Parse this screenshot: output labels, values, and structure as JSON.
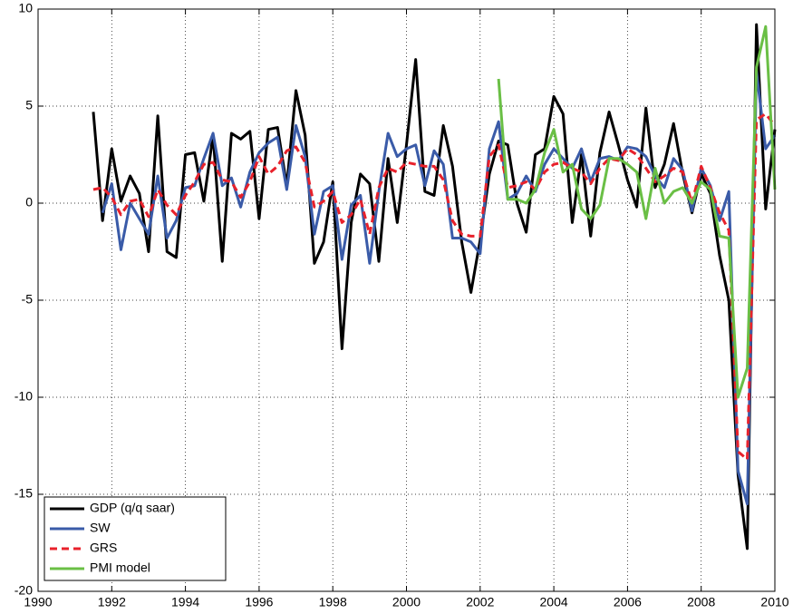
{
  "chart_data": {
    "type": "line",
    "x": [
      1991.5,
      1991.75,
      1992,
      1992.25,
      1992.5,
      1992.75,
      1993,
      1993.25,
      1993.5,
      1993.75,
      1994,
      1994.25,
      1994.5,
      1994.75,
      1995,
      1995.25,
      1995.5,
      1995.75,
      1996,
      1996.25,
      1996.5,
      1996.75,
      1997,
      1997.25,
      1997.5,
      1997.75,
      1998,
      1998.25,
      1998.5,
      1998.75,
      1999,
      1999.25,
      1999.5,
      1999.75,
      2000,
      2000.25,
      2000.5,
      2000.75,
      2001,
      2001.25,
      2001.5,
      2001.75,
      2002,
      2002.25,
      2002.5,
      2002.75,
      2003,
      2003.25,
      2003.5,
      2003.75,
      2004,
      2004.25,
      2004.5,
      2004.75,
      2005,
      2005.25,
      2005.5,
      2005.75,
      2006,
      2006.25,
      2006.5,
      2006.75,
      2007,
      2007.25,
      2007.5,
      2007.75,
      2008,
      2008.25,
      2008.5,
      2008.75,
      2009,
      2009.25,
      2009.5,
      2009.75,
      2010
    ],
    "series": [
      {
        "name": "GDP (q/q saar)",
        "color": "#000000",
        "dashed": false,
        "values": [
          4.7,
          -0.9,
          2.8,
          0.1,
          1.4,
          0.5,
          -2.5,
          4.5,
          -2.5,
          -2.8,
          2.5,
          2.6,
          0.1,
          3.5,
          -3.0,
          3.6,
          3.3,
          3.7,
          -0.8,
          3.8,
          3.9,
          0.9,
          5.8,
          3.5,
          -3.1,
          -2.0,
          1.1,
          -7.5,
          -1.0,
          1.5,
          1.0,
          -3.0,
          2.3,
          -1.0,
          3.0,
          7.4,
          0.6,
          0.4,
          4.0,
          1.9,
          -2.0,
          -4.6,
          -1.9,
          1.5,
          3.2,
          3.0,
          0.0,
          -1.5,
          2.5,
          2.8,
          5.5,
          4.6,
          -1.0,
          2.5,
          -1.7,
          2.6,
          4.7,
          3.0,
          1.2,
          -0.2,
          4.9,
          0.8,
          2.0,
          4.1,
          1.5,
          -0.5,
          1.5,
          0.5,
          -2.7,
          -5.0,
          -14.0,
          -17.8,
          9.2,
          -0.3,
          3.8
        ]
      },
      {
        "name": "SW",
        "color": "#3a5ba8",
        "dashed": false,
        "values": [
          null,
          -0.5,
          1.0,
          -2.4,
          0.0,
          -0.8,
          -1.6,
          1.4,
          -1.8,
          -0.9,
          0.8,
          0.9,
          2.3,
          3.6,
          0.9,
          1.3,
          -0.2,
          1.6,
          2.6,
          3.1,
          3.4,
          0.7,
          4.0,
          2.4,
          -1.6,
          0.6,
          0.9,
          -2.9,
          -0.1,
          0.4,
          -3.1,
          0.6,
          3.6,
          2.4,
          2.8,
          3.0,
          0.9,
          2.7,
          2.0,
          -1.8,
          -1.8,
          -2.0,
          -2.6,
          2.8,
          4.2,
          0.2,
          0.5,
          1.4,
          0.6,
          2.0,
          2.8,
          2.3,
          1.8,
          2.8,
          1.1,
          2.3,
          2.4,
          2.2,
          2.9,
          2.8,
          2.4,
          1.4,
          0.8,
          2.3,
          1.7,
          -0.4,
          1.8,
          0.9,
          -0.9,
          0.6,
          -13.8,
          -15.5,
          6.8,
          2.8,
          3.5
        ]
      },
      {
        "name": "GRS",
        "color": "#e8212b",
        "dashed": true,
        "values": [
          0.7,
          0.8,
          0.3,
          -0.6,
          0.1,
          0.2,
          -0.7,
          0.7,
          -0.1,
          -0.6,
          0.4,
          1.1,
          2.0,
          2.1,
          1.2,
          1.1,
          0.3,
          1.1,
          2.4,
          1.5,
          1.9,
          2.7,
          2.9,
          2.1,
          -0.2,
          0.1,
          0.6,
          -1.0,
          -0.6,
          0.2,
          -1.6,
          0.8,
          1.8,
          1.6,
          2.1,
          2.0,
          1.9,
          1.9,
          1.2,
          -0.9,
          -1.6,
          -1.7,
          -1.7,
          2.4,
          3.0,
          0.8,
          0.9,
          1.1,
          0.7,
          1.6,
          2.0,
          2.1,
          1.8,
          1.6,
          1.0,
          1.8,
          2.3,
          2.2,
          2.8,
          2.5,
          1.8,
          1.1,
          1.4,
          1.8,
          1.6,
          0.0,
          1.9,
          0.8,
          -0.5,
          -1.4,
          -12.8,
          -13.2,
          4.3,
          4.6,
          4.0
        ]
      },
      {
        "name": "PMI model",
        "color": "#6abf45",
        "dashed": false,
        "values": [
          null,
          null,
          null,
          null,
          null,
          null,
          null,
          null,
          null,
          null,
          null,
          null,
          null,
          null,
          null,
          null,
          null,
          null,
          null,
          null,
          null,
          null,
          null,
          null,
          null,
          null,
          null,
          null,
          null,
          null,
          null,
          null,
          null,
          null,
          null,
          null,
          null,
          null,
          null,
          null,
          null,
          null,
          null,
          null,
          6.4,
          0.2,
          0.2,
          0.0,
          0.7,
          2.6,
          3.8,
          1.6,
          2.0,
          -0.3,
          -0.8,
          -0.1,
          2.3,
          2.3,
          2.0,
          1.6,
          -0.8,
          1.8,
          0.0,
          0.6,
          0.8,
          0.0,
          1.1,
          0.7,
          -1.7,
          -1.8,
          -10.0,
          -8.5,
          7.0,
          9.1,
          0.7
        ]
      }
    ],
    "xlim": [
      1990,
      2010
    ],
    "xticks": [
      1990,
      1992,
      1994,
      1996,
      1998,
      2000,
      2002,
      2004,
      2006,
      2008,
      2010
    ],
    "ylim": [
      -20,
      10
    ],
    "yticks": [
      -20,
      -15,
      -10,
      -5,
      0,
      5,
      10
    ],
    "grid": true,
    "legend": "lower left"
  }
}
